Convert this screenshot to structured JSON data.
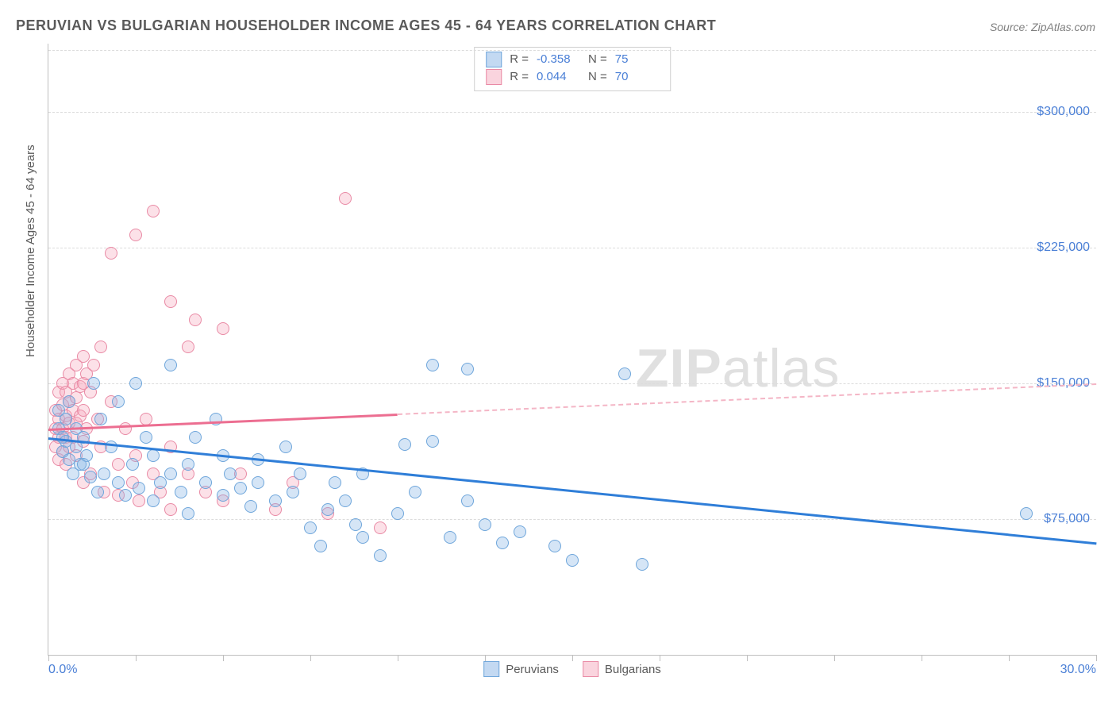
{
  "title": "PERUVIAN VS BULGARIAN HOUSEHOLDER INCOME AGES 45 - 64 YEARS CORRELATION CHART",
  "source": "Source: ZipAtlas.com",
  "yaxis_label": "Householder Income Ages 45 - 64 years",
  "watermark_bold": "ZIP",
  "watermark_rest": "atlas",
  "xlim": [
    0,
    30
  ],
  "ylim": [
    0,
    337500
  ],
  "x_tick_labels": {
    "min": "0.0%",
    "max": "30.0%"
  },
  "x_ticks_pct": [
    0,
    2.5,
    5,
    7.5,
    10,
    12.5,
    15,
    17.5,
    20,
    22.5,
    25,
    27.5,
    30
  ],
  "y_gridlines": [
    {
      "value": 75000,
      "label": "$75,000"
    },
    {
      "value": 150000,
      "label": "$150,000"
    },
    {
      "value": 225000,
      "label": "$225,000"
    },
    {
      "value": 300000,
      "label": "$300,000"
    }
  ],
  "colors": {
    "blue_fill": "rgba(135,180,230,0.35)",
    "blue_stroke": "#6fa6db",
    "blue_line": "#2f7ed8",
    "pink_fill": "rgba(245,170,190,0.35)",
    "pink_stroke": "#e98aa5",
    "pink_line": "#ec6e91",
    "pink_dash": "#f4b6c6",
    "grid": "#dcdcdc",
    "axis": "#bfbfbf",
    "text_muted": "#5a5a5a",
    "text_value": "#4a7fd6",
    "background": "#ffffff"
  },
  "point_radius": 8,
  "series": {
    "peruvians": {
      "label": "Peruvians",
      "r_value": "-0.358",
      "n_value": "75",
      "trend": {
        "x1": 0,
        "y1": 120000,
        "x2": 30,
        "y2": 62000,
        "solid_end_x": 30
      },
      "points": [
        [
          0.3,
          135000
        ],
        [
          0.3,
          125000
        ],
        [
          0.4,
          120000
        ],
        [
          0.4,
          112000
        ],
        [
          0.5,
          130000
        ],
        [
          0.5,
          118000
        ],
        [
          0.6,
          108000
        ],
        [
          0.6,
          140000
        ],
        [
          0.7,
          100000
        ],
        [
          0.8,
          125000
        ],
        [
          0.8,
          115000
        ],
        [
          0.9,
          105000
        ],
        [
          1.0,
          120000
        ],
        [
          1.1,
          110000
        ],
        [
          1.2,
          98000
        ],
        [
          1.3,
          150000
        ],
        [
          1.4,
          90000
        ],
        [
          1.5,
          130000
        ],
        [
          1.6,
          100000
        ],
        [
          1.8,
          115000
        ],
        [
          2.0,
          95000
        ],
        [
          2.0,
          140000
        ],
        [
          2.2,
          88000
        ],
        [
          2.4,
          105000
        ],
        [
          2.5,
          150000
        ],
        [
          2.6,
          92000
        ],
        [
          2.8,
          120000
        ],
        [
          3.0,
          85000
        ],
        [
          3.0,
          110000
        ],
        [
          3.2,
          95000
        ],
        [
          3.5,
          100000
        ],
        [
          3.5,
          160000
        ],
        [
          3.8,
          90000
        ],
        [
          4.0,
          105000
        ],
        [
          4.0,
          78000
        ],
        [
          4.2,
          120000
        ],
        [
          4.5,
          95000
        ],
        [
          4.8,
          130000
        ],
        [
          5.0,
          88000
        ],
        [
          5.0,
          110000
        ],
        [
          5.2,
          100000
        ],
        [
          5.5,
          92000
        ],
        [
          5.8,
          82000
        ],
        [
          6.0,
          95000
        ],
        [
          6.0,
          108000
        ],
        [
          6.5,
          85000
        ],
        [
          6.8,
          115000
        ],
        [
          7.0,
          90000
        ],
        [
          7.2,
          100000
        ],
        [
          7.5,
          70000
        ],
        [
          7.8,
          60000
        ],
        [
          8.0,
          80000
        ],
        [
          8.2,
          95000
        ],
        [
          8.5,
          85000
        ],
        [
          8.8,
          72000
        ],
        [
          9.0,
          100000
        ],
        [
          9.0,
          65000
        ],
        [
          9.5,
          55000
        ],
        [
          10.0,
          78000
        ],
        [
          10.2,
          116000
        ],
        [
          10.5,
          90000
        ],
        [
          11.0,
          160000
        ],
        [
          11.0,
          118000
        ],
        [
          11.5,
          65000
        ],
        [
          12.0,
          85000
        ],
        [
          12.0,
          158000
        ],
        [
          12.5,
          72000
        ],
        [
          13.0,
          62000
        ],
        [
          13.5,
          68000
        ],
        [
          14.5,
          60000
        ],
        [
          15.0,
          52000
        ],
        [
          16.5,
          155000
        ],
        [
          17.0,
          50000
        ],
        [
          28.0,
          78000
        ],
        [
          1.0,
          105000
        ]
      ]
    },
    "bulgarians": {
      "label": "Bulgarians",
      "r_value": "0.044",
      "n_value": "70",
      "trend": {
        "x1": 0,
        "y1": 125000,
        "x2": 30,
        "y2": 150000,
        "solid_end_x": 10
      },
      "points": [
        [
          0.2,
          135000
        ],
        [
          0.2,
          125000
        ],
        [
          0.2,
          115000
        ],
        [
          0.3,
          145000
        ],
        [
          0.3,
          130000
        ],
        [
          0.3,
          120000
        ],
        [
          0.3,
          108000
        ],
        [
          0.4,
          150000
        ],
        [
          0.4,
          138000
        ],
        [
          0.4,
          125000
        ],
        [
          0.4,
          112000
        ],
        [
          0.5,
          145000
        ],
        [
          0.5,
          132000
        ],
        [
          0.5,
          120000
        ],
        [
          0.5,
          105000
        ],
        [
          0.6,
          155000
        ],
        [
          0.6,
          140000
        ],
        [
          0.6,
          128000
        ],
        [
          0.6,
          115000
        ],
        [
          0.7,
          150000
        ],
        [
          0.7,
          135000
        ],
        [
          0.7,
          120000
        ],
        [
          0.8,
          160000
        ],
        [
          0.8,
          142000
        ],
        [
          0.8,
          128000
        ],
        [
          0.8,
          110000
        ],
        [
          0.9,
          148000
        ],
        [
          0.9,
          132000
        ],
        [
          1.0,
          165000
        ],
        [
          1.0,
          150000
        ],
        [
          1.0,
          135000
        ],
        [
          1.0,
          118000
        ],
        [
          1.0,
          95000
        ],
        [
          1.1,
          155000
        ],
        [
          1.1,
          125000
        ],
        [
          1.2,
          145000
        ],
        [
          1.2,
          100000
        ],
        [
          1.3,
          160000
        ],
        [
          1.4,
          130000
        ],
        [
          1.5,
          170000
        ],
        [
          1.5,
          115000
        ],
        [
          1.6,
          90000
        ],
        [
          1.8,
          222000
        ],
        [
          1.8,
          140000
        ],
        [
          2.0,
          105000
        ],
        [
          2.0,
          88000
        ],
        [
          2.2,
          125000
        ],
        [
          2.4,
          95000
        ],
        [
          2.5,
          232000
        ],
        [
          2.5,
          110000
        ],
        [
          2.6,
          85000
        ],
        [
          2.8,
          130000
        ],
        [
          3.0,
          100000
        ],
        [
          3.0,
          245000
        ],
        [
          3.2,
          90000
        ],
        [
          3.5,
          195000
        ],
        [
          3.5,
          115000
        ],
        [
          3.5,
          80000
        ],
        [
          4.0,
          170000
        ],
        [
          4.0,
          100000
        ],
        [
          4.2,
          185000
        ],
        [
          4.5,
          90000
        ],
        [
          5.0,
          180000
        ],
        [
          5.0,
          85000
        ],
        [
          5.5,
          100000
        ],
        [
          6.5,
          80000
        ],
        [
          7.0,
          95000
        ],
        [
          8.0,
          78000
        ],
        [
          8.5,
          252000
        ],
        [
          9.5,
          70000
        ]
      ]
    }
  },
  "legend_labels": {
    "R": "R =",
    "N": "N ="
  }
}
